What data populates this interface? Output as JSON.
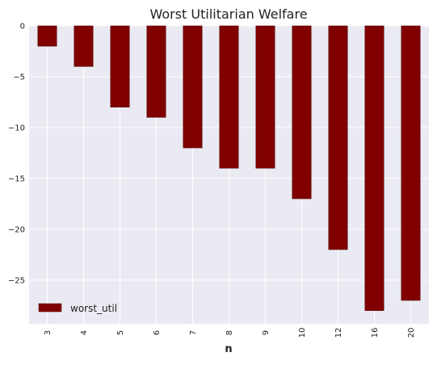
{
  "chart_data": {
    "type": "bar",
    "title": "Worst Utilitarian Welfare",
    "xlabel": "n",
    "ylabel": "",
    "categories": [
      "3",
      "4",
      "5",
      "6",
      "7",
      "8",
      "9",
      "10",
      "12",
      "16",
      "20"
    ],
    "series": [
      {
        "name": "worst_util",
        "values": [
          -2,
          -4,
          -8,
          -9,
          -12,
          -14,
          -14,
          -17,
          -22,
          -28,
          -27
        ]
      }
    ],
    "ylim": [
      -29.3,
      0
    ],
    "yticks": [
      0,
      -5,
      -10,
      -15,
      -20,
      -25
    ],
    "ytick_labels": [
      "0",
      "−5",
      "−10",
      "−15",
      "−20",
      "−25"
    ],
    "grid": true,
    "legend_placement": "lower-left",
    "colors": {
      "bar": "#800000",
      "plot_background": "#eaeaf2",
      "grid": "#ffffff"
    }
  }
}
